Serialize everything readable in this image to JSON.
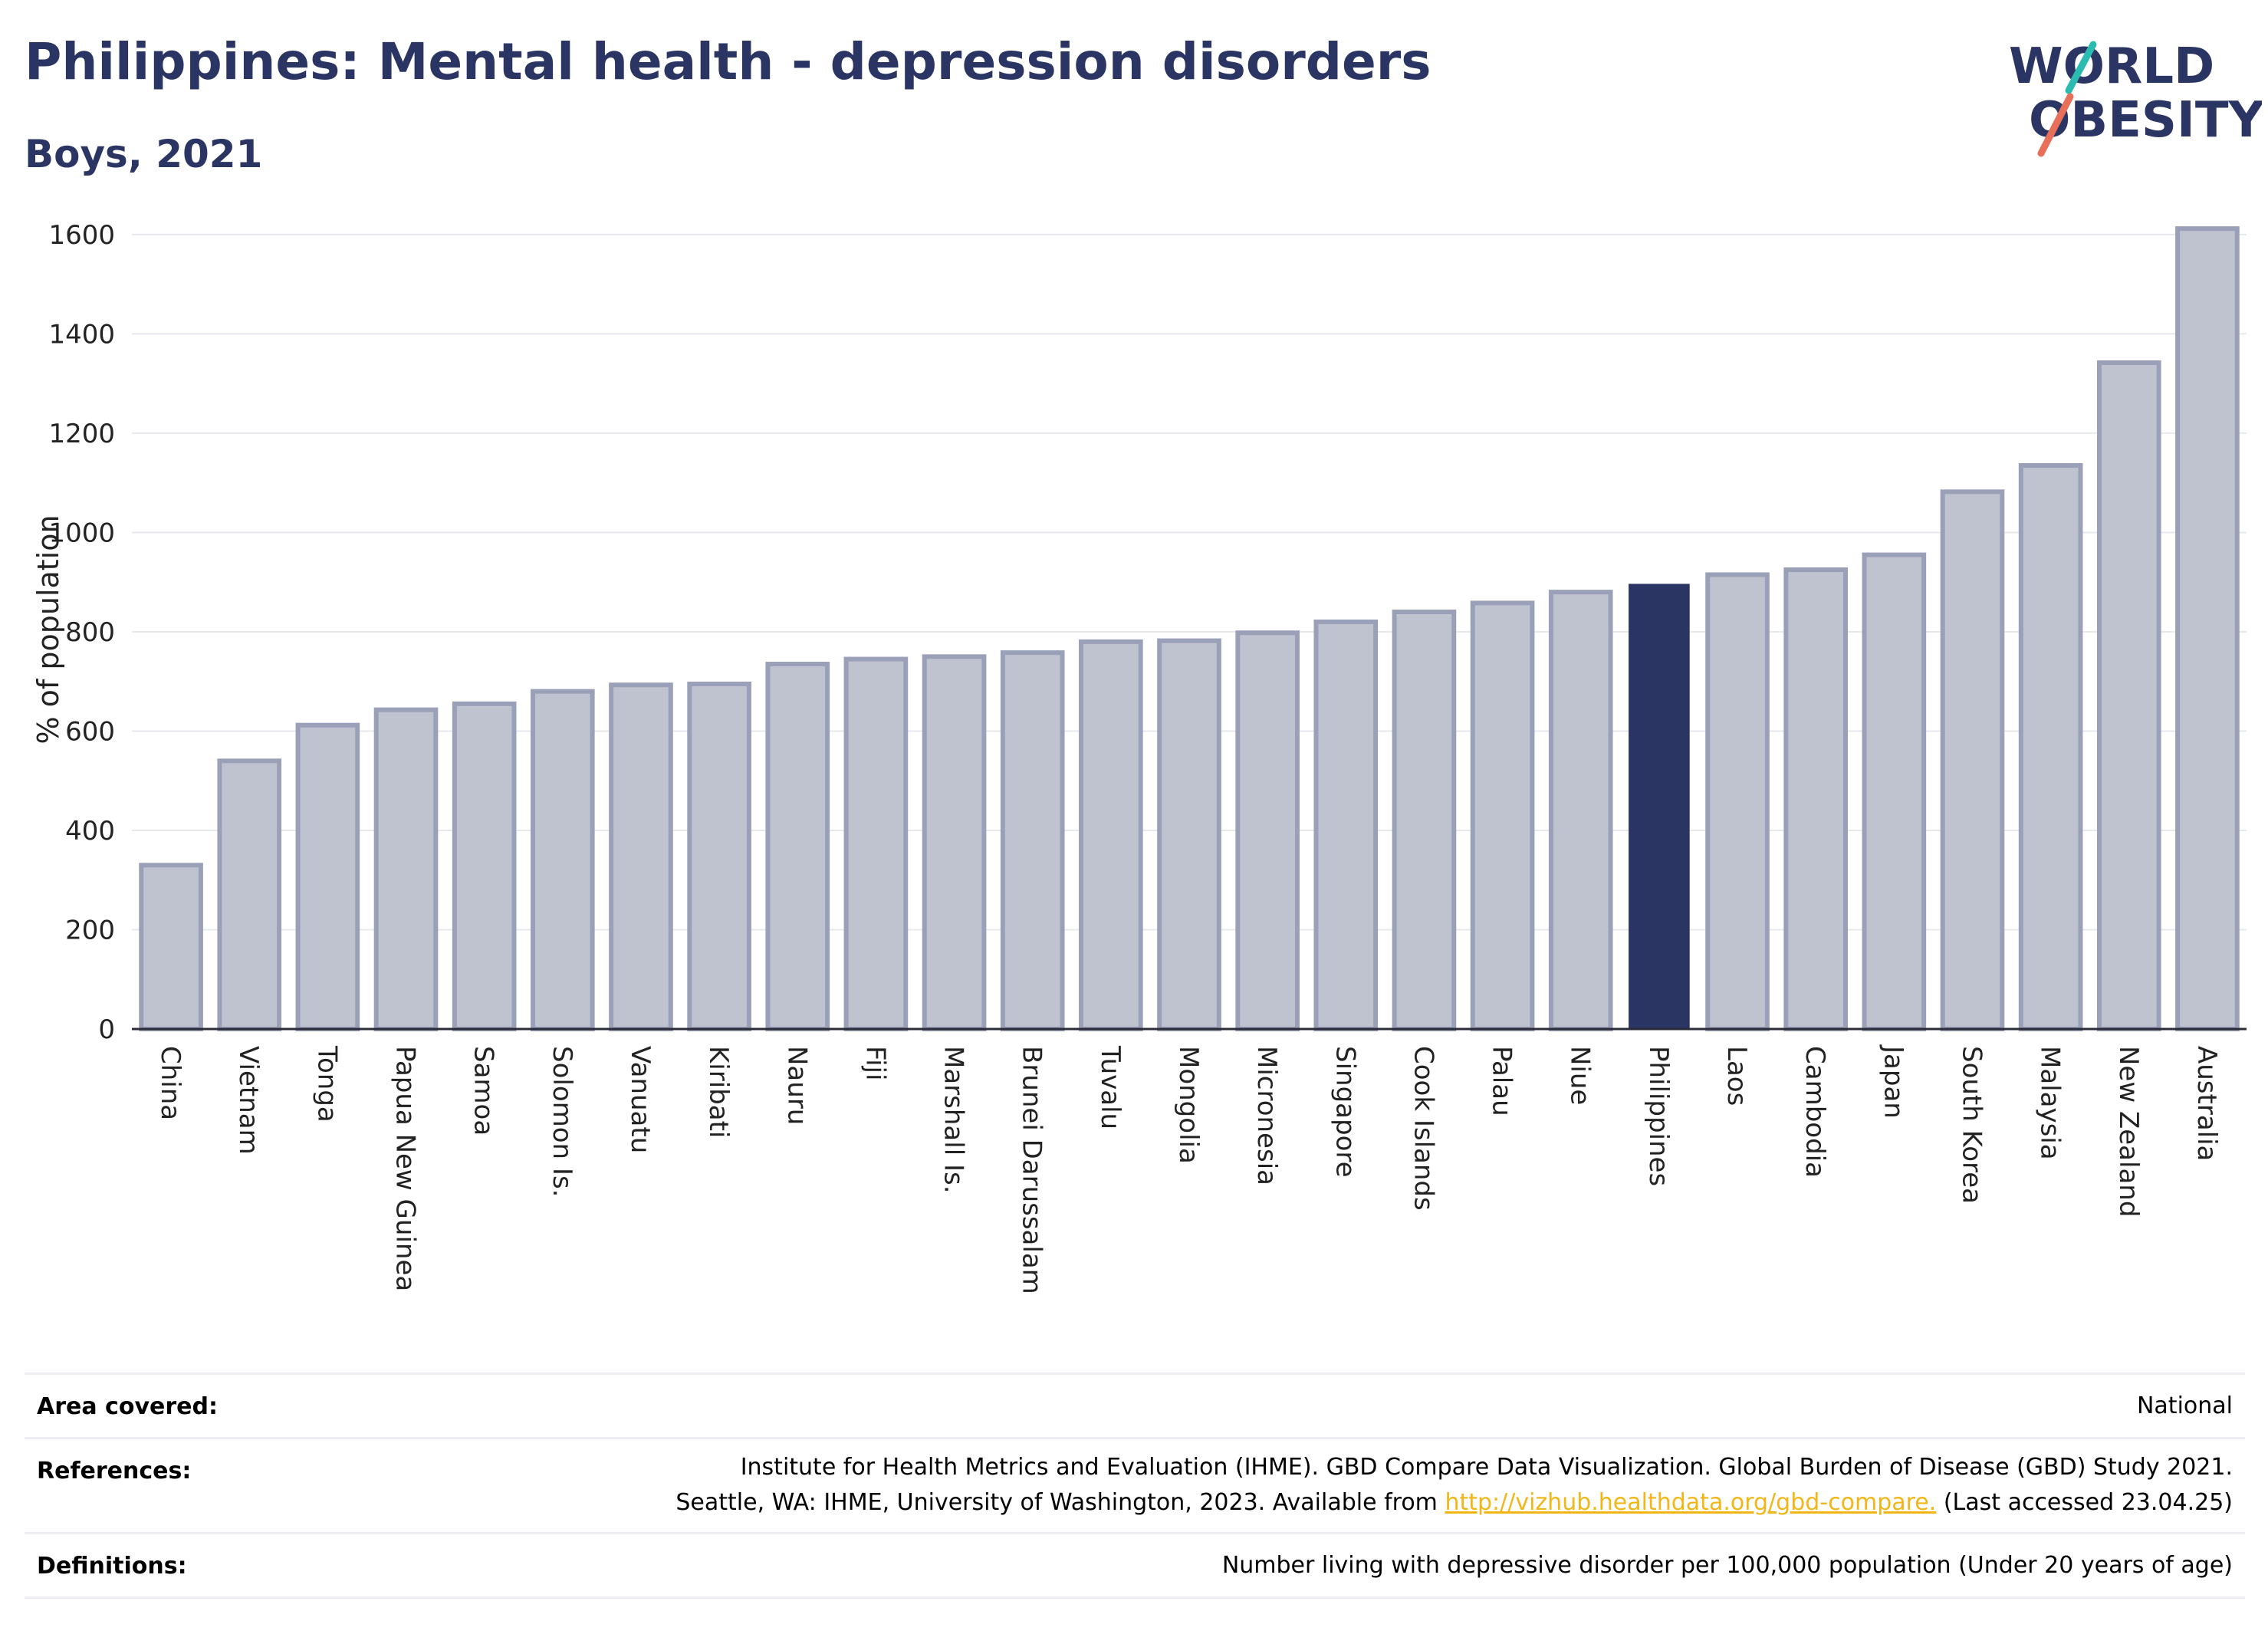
{
  "header": {
    "title": "Philippines: Mental health - depression disorders",
    "subtitle": "Boys, 2021"
  },
  "logo": {
    "line1": "WORLD",
    "line2": "OBESITY",
    "slash_colors": [
      "#2bbbb0",
      "#e8705b"
    ],
    "text_color": "#2b3563"
  },
  "chart_data": {
    "type": "bar",
    "ylabel": "% of population",
    "xlabel": "",
    "ylim": [
      0,
      1640
    ],
    "yticks": [
      0,
      200,
      400,
      600,
      800,
      1000,
      1200,
      1400,
      1600
    ],
    "grid": true,
    "highlight": "Philippines",
    "colors": {
      "bar": "#bfc3d0",
      "bar_border": "#9aa0b8",
      "highlight": "#2b3563"
    },
    "categories": [
      "China",
      "Vietnam",
      "Tonga",
      "Papua New Guinea",
      "Samoa",
      "Solomon Is.",
      "Vanuatu",
      "Kiribati",
      "Nauru",
      "Fiji",
      "Marshall Is.",
      "Brunei Darussalam",
      "Tuvalu",
      "Mongolia",
      "Micronesia",
      "Singapore",
      "Cook Islands",
      "Palau",
      "Niue",
      "Philippines",
      "Laos",
      "Cambodia",
      "Japan",
      "South Korea",
      "Malaysia",
      "New Zealand",
      "Australia"
    ],
    "values": [
      330,
      540,
      612,
      643,
      655,
      680,
      693,
      695,
      735,
      745,
      750,
      758,
      780,
      782,
      798,
      820,
      840,
      858,
      880,
      895,
      915,
      925,
      955,
      1082,
      1135,
      1342,
      1612
    ]
  },
  "info": {
    "area_label": "Area covered:",
    "area_value": "National",
    "ref_label": "References:",
    "ref_line1": "Institute for Health Metrics and Evaluation (IHME). GBD Compare Data Visualization. Global Burden of Disease (GBD) Study 2021.",
    "ref_line2_pre": "Seattle, WA: IHME, University of Washington, 2023. Available from ",
    "ref_link": "http://vizhub.healthdata.org/gbd-compare.",
    "ref_line2_post": " (Last accessed 23.04.25)",
    "def_label": "Definitions:",
    "def_value": "Number living with depressive disorder per 100,000 population (Under 20 years of age)"
  }
}
